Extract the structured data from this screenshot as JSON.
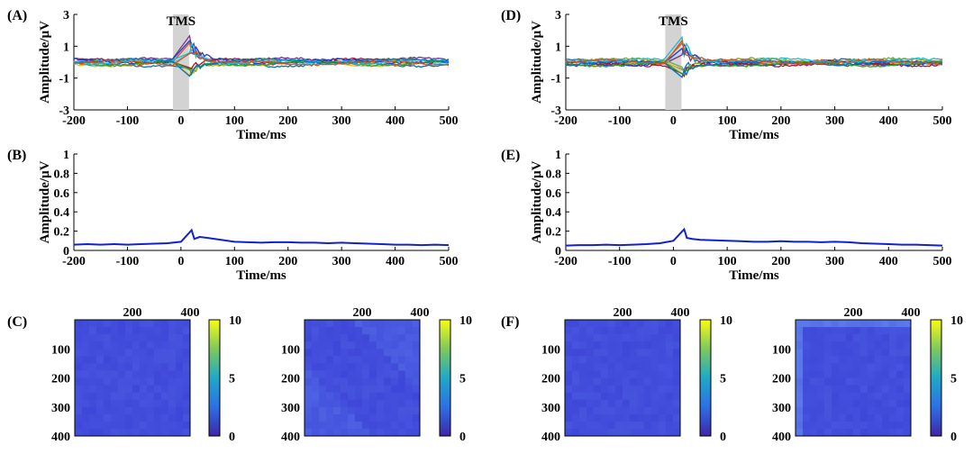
{
  "colors": {
    "mean_line": "#1122cc",
    "tms_shade": "#d3d3d3",
    "trace_palette": [
      "#0072bd",
      "#d95319",
      "#edb120",
      "#7e2f8e",
      "#77ac30",
      "#4dbeee",
      "#a2142f",
      "#1f3fd0",
      "#2ca02c",
      "#17becf"
    ],
    "colormap_low": "#3a2e9e",
    "colormap_mid": "#2ba7b8",
    "colormap_high": "#f9e21a"
  },
  "panels": [
    {
      "label": "(A)"
    },
    {
      "label": "(B)"
    },
    {
      "label": "(C)"
    },
    {
      "label": "(D)"
    },
    {
      "label": "(E)"
    },
    {
      "label": "(F)"
    }
  ],
  "chart_data": [
    {
      "id": "A",
      "type": "line",
      "title": "",
      "xlabel": "Time/ms",
      "ylabel": "Amplitude/μV",
      "xlim": [
        -200,
        500
      ],
      "ylim": [
        -3,
        3
      ],
      "xticks": [
        -200,
        -100,
        0,
        100,
        200,
        300,
        400,
        500
      ],
      "yticks": [
        -3,
        -1,
        1,
        3
      ],
      "annotation": {
        "text": "TMS",
        "shade_x": [
          -15,
          15
        ]
      },
      "series_count": 12,
      "note_values": "multi-channel overlaid traces near 0 μV, spike near 15-30 ms up to about 1 μV"
    },
    {
      "id": "B",
      "type": "line",
      "title": "",
      "xlabel": "Time/ms",
      "ylabel": "Amplitude/μV",
      "xlim": [
        -200,
        500
      ],
      "ylim": [
        0,
        1
      ],
      "xticks": [
        -200,
        -100,
        0,
        100,
        200,
        300,
        400,
        500
      ],
      "yticks": [
        0,
        0.2,
        0.4,
        0.6,
        0.8,
        1
      ],
      "series": [
        {
          "x": [
            -200,
            -175,
            -150,
            -125,
            -100,
            -75,
            -50,
            -25,
            0,
            10,
            20,
            25,
            35,
            50,
            75,
            100,
            125,
            150,
            175,
            200,
            225,
            250,
            275,
            300,
            325,
            350,
            375,
            400,
            425,
            450,
            475,
            500
          ],
          "values": [
            0.06,
            0.065,
            0.06,
            0.065,
            0.06,
            0.065,
            0.07,
            0.075,
            0.09,
            0.15,
            0.21,
            0.12,
            0.14,
            0.13,
            0.11,
            0.09,
            0.085,
            0.08,
            0.085,
            0.085,
            0.08,
            0.08,
            0.075,
            0.08,
            0.075,
            0.07,
            0.065,
            0.06,
            0.06,
            0.055,
            0.06,
            0.055
          ]
        }
      ]
    },
    {
      "id": "C1",
      "type": "heatmap",
      "title": "",
      "xticks": [
        200,
        400
      ],
      "yticks": [
        100,
        200,
        300,
        400
      ],
      "colorbar_ticks": [
        0,
        5,
        10
      ],
      "clim": [
        0,
        10
      ],
      "pattern": "near-uniform low values about 1-2"
    },
    {
      "id": "C2",
      "type": "heatmap",
      "title": "",
      "xticks": [
        200,
        400
      ],
      "yticks": [
        100,
        200,
        300,
        400
      ],
      "colorbar_ticks": [
        0,
        5,
        10
      ],
      "clim": [
        0,
        10
      ],
      "pattern": "low values 1-3 with lighter diagonal-off regions"
    },
    {
      "id": "D",
      "type": "line",
      "title": "",
      "xlabel": "Time/ms",
      "ylabel": "Amplitude/μV",
      "xlim": [
        -200,
        500
      ],
      "ylim": [
        -3,
        3
      ],
      "xticks": [
        -200,
        -100,
        0,
        100,
        200,
        300,
        400,
        500
      ],
      "yticks": [
        -3,
        -1,
        1,
        3
      ],
      "annotation": {
        "text": "TMS",
        "shade_x": [
          -15,
          15
        ]
      },
      "series_count": 12,
      "note_values": "multi-channel overlaid traces near 0 μV, spike near 15-30 ms up to about 1 μV"
    },
    {
      "id": "E",
      "type": "line",
      "title": "",
      "xlabel": "Time/ms",
      "ylabel": "Amplitude/μV",
      "xlim": [
        -200,
        500
      ],
      "ylim": [
        0,
        1
      ],
      "xticks": [
        -200,
        -100,
        0,
        100,
        200,
        300,
        400,
        500
      ],
      "yticks": [
        0,
        0.2,
        0.4,
        0.6,
        0.8,
        1
      ],
      "series": [
        {
          "x": [
            -200,
            -175,
            -150,
            -125,
            -100,
            -75,
            -50,
            -25,
            0,
            10,
            20,
            25,
            35,
            50,
            75,
            100,
            125,
            150,
            175,
            200,
            225,
            250,
            275,
            300,
            325,
            350,
            375,
            400,
            425,
            450,
            475,
            500
          ],
          "values": [
            0.05,
            0.055,
            0.055,
            0.06,
            0.055,
            0.06,
            0.065,
            0.075,
            0.1,
            0.16,
            0.22,
            0.13,
            0.12,
            0.11,
            0.105,
            0.1,
            0.095,
            0.09,
            0.09,
            0.095,
            0.09,
            0.09,
            0.085,
            0.09,
            0.085,
            0.075,
            0.07,
            0.065,
            0.06,
            0.06,
            0.055,
            0.05
          ]
        }
      ]
    },
    {
      "id": "F1",
      "type": "heatmap",
      "title": "",
      "xticks": [
        200,
        400
      ],
      "yticks": [
        100,
        200,
        300,
        400
      ],
      "colorbar_ticks": [
        0,
        5,
        10
      ],
      "clim": [
        0,
        10
      ],
      "pattern": "near-uniform low values about 1-2"
    },
    {
      "id": "F2",
      "type": "heatmap",
      "title": "",
      "xticks": [
        200,
        400
      ],
      "yticks": [
        100,
        200,
        300,
        400
      ],
      "colorbar_ticks": [
        0,
        5,
        10
      ],
      "clim": [
        0,
        10
      ],
      "pattern": "low values with lighter top row and left column"
    }
  ]
}
